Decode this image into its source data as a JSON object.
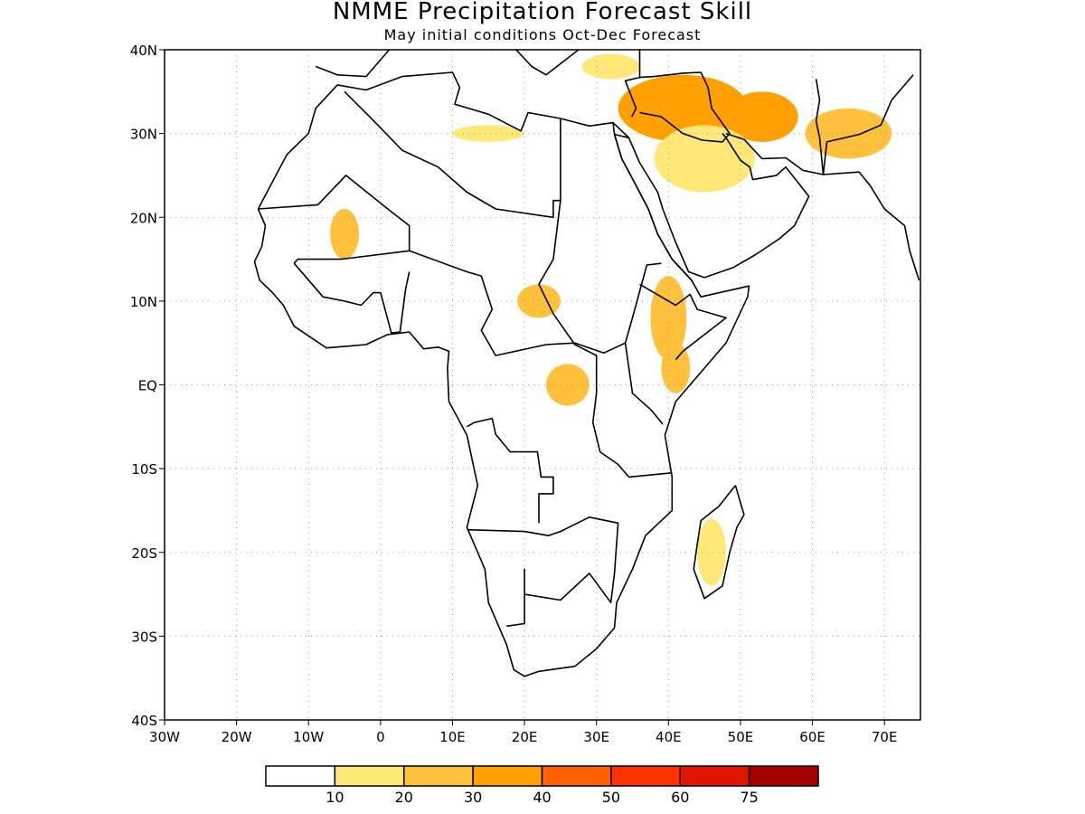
{
  "title": "NMME Precipitation Forecast Skill",
  "subtitle": "May initial conditions  Oct-Dec Forecast",
  "map": {
    "region": "Africa",
    "lon_range": [
      -30,
      75
    ],
    "lat_range": [
      -40,
      40
    ],
    "x_ticks": [
      {
        "lon": -30,
        "label": "30W"
      },
      {
        "lon": -20,
        "label": "20W"
      },
      {
        "lon": -10,
        "label": "10W"
      },
      {
        "lon": 0,
        "label": "0"
      },
      {
        "lon": 10,
        "label": "10E"
      },
      {
        "lon": 20,
        "label": "20E"
      },
      {
        "lon": 30,
        "label": "30E"
      },
      {
        "lon": 40,
        "label": "40E"
      },
      {
        "lon": 50,
        "label": "50E"
      },
      {
        "lon": 60,
        "label": "60E"
      },
      {
        "lon": 70,
        "label": "70E"
      }
    ],
    "y_ticks": [
      {
        "lat": 40,
        "label": "40N"
      },
      {
        "lat": 30,
        "label": "30N"
      },
      {
        "lat": 20,
        "label": "20N"
      },
      {
        "lat": 10,
        "label": "10N"
      },
      {
        "lat": 0,
        "label": "EQ"
      },
      {
        "lat": -10,
        "label": "10S"
      },
      {
        "lat": -20,
        "label": "20S"
      },
      {
        "lat": -30,
        "label": "30S"
      },
      {
        "lat": -40,
        "label": "40S"
      }
    ],
    "gridlines": "dotted"
  },
  "colorbar": {
    "colors": [
      "#ffffff",
      "#ffe878",
      "#ffc03c",
      "#ffa000",
      "#ff6000",
      "#ff3200",
      "#e11400",
      "#a50000"
    ],
    "labels": [
      "10",
      "20",
      "30",
      "40",
      "50",
      "60",
      "75"
    ]
  },
  "skill_regions": [
    {
      "lon": 42,
      "lat": 33,
      "level": 3,
      "rx": 9,
      "ry": 4
    },
    {
      "lon": 53,
      "lat": 32,
      "level": 3,
      "rx": 5,
      "ry": 3
    },
    {
      "lon": 45,
      "lat": 27,
      "level": 1,
      "rx": 7,
      "ry": 4
    },
    {
      "lon": 65,
      "lat": 30,
      "level": 2,
      "rx": 6,
      "ry": 3
    },
    {
      "lon": 32,
      "lat": 38,
      "level": 1,
      "rx": 4,
      "ry": 1.5
    },
    {
      "lon": 40,
      "lat": 8,
      "level": 2,
      "rx": 2.5,
      "ry": 5
    },
    {
      "lon": 41,
      "lat": 2,
      "level": 2,
      "rx": 2,
      "ry": 3
    },
    {
      "lon": 26,
      "lat": 0,
      "level": 2,
      "rx": 3,
      "ry": 2.5
    },
    {
      "lon": 22,
      "lat": 10,
      "level": 2,
      "rx": 3,
      "ry": 2
    },
    {
      "lon": -5,
      "lat": 18,
      "level": 2,
      "rx": 2,
      "ry": 3
    },
    {
      "lon": 46,
      "lat": -20,
      "level": 1,
      "rx": 2,
      "ry": 4
    },
    {
      "lon": 15,
      "lat": 30,
      "level": 1,
      "rx": 5,
      "ry": 1
    }
  ]
}
